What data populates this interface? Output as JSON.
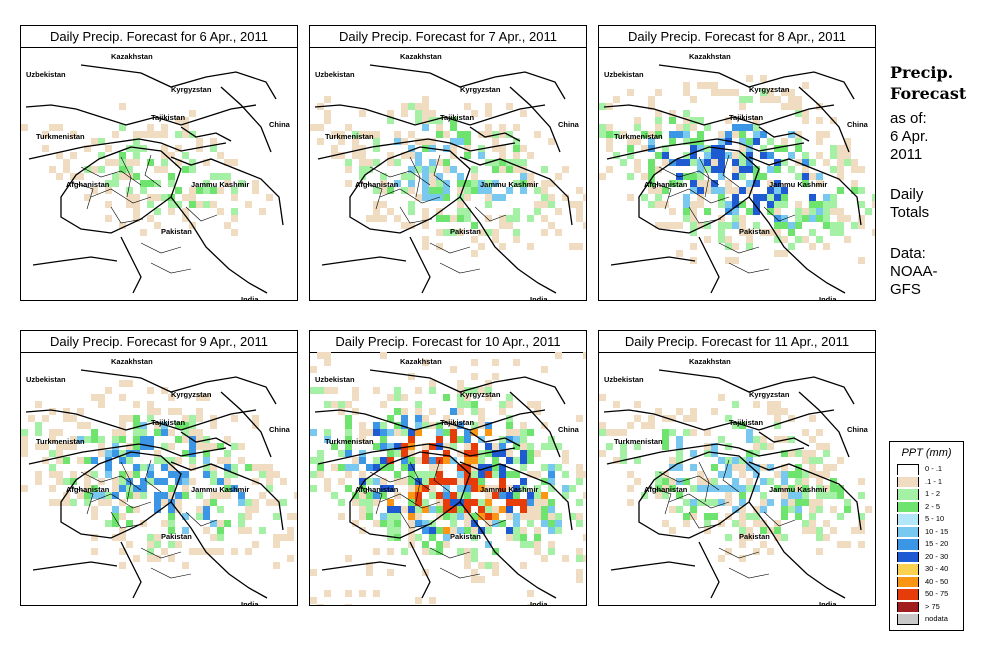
{
  "panels": [
    {
      "title": "Daily Precip. Forecast for  6 Apr., 2011",
      "intensity": 0.25
    },
    {
      "title": "Daily Precip. Forecast for  7 Apr., 2011",
      "intensity": 0.45
    },
    {
      "title": "Daily Precip. Forecast for  8 Apr., 2011",
      "intensity": 0.65
    },
    {
      "title": "Daily Precip. Forecast for  9 Apr., 2011",
      "intensity": 0.6
    },
    {
      "title": "Daily Precip. Forecast for  10 Apr., 2011",
      "intensity": 0.9
    },
    {
      "title": "Daily Precip. Forecast for  11 Apr., 2011",
      "intensity": 0.55
    }
  ],
  "countries": [
    "Kazakhstan",
    "Uzbekistan",
    "Kyrgyzstan",
    "Tajikistan",
    "China",
    "Turkmenistan",
    "Afghanistan",
    "Jammu Kashmir",
    "Pakistan",
    "India"
  ],
  "side": {
    "title_line1": "Precip.",
    "title_line2": "Forecast",
    "asof_line1": "as of:",
    "asof_line2": "6 Apr.",
    "asof_line3": "2011",
    "totals_line1": "Daily",
    "totals_line2": "Totals",
    "data_line1": "Data:",
    "data_line2": "NOAA-",
    "data_line3": "GFS"
  },
  "legend": {
    "title": "PPT (mm)",
    "items": [
      {
        "label": "0 - .1",
        "color": "#ffffff"
      },
      {
        "label": ".1 - 1",
        "color": "#f0dcc0"
      },
      {
        "label": "1 - 2",
        "color": "#a4f0a4"
      },
      {
        "label": "2 - 5",
        "color": "#6ee46e"
      },
      {
        "label": "5 - 10",
        "color": "#b4e6fa"
      },
      {
        "label": "10 - 15",
        "color": "#78c8f0"
      },
      {
        "label": "15 - 20",
        "color": "#3c96e6"
      },
      {
        "label": "20 - 30",
        "color": "#1e5ad2"
      },
      {
        "label": "30 - 40",
        "color": "#fad250"
      },
      {
        "label": "40 - 50",
        "color": "#fa9614"
      },
      {
        "label": "50 - 75",
        "color": "#e63c0a"
      },
      {
        "label": "> 75",
        "color": "#a01e1e"
      },
      {
        "label": "nodata",
        "color": "#c8c8c8"
      }
    ]
  }
}
